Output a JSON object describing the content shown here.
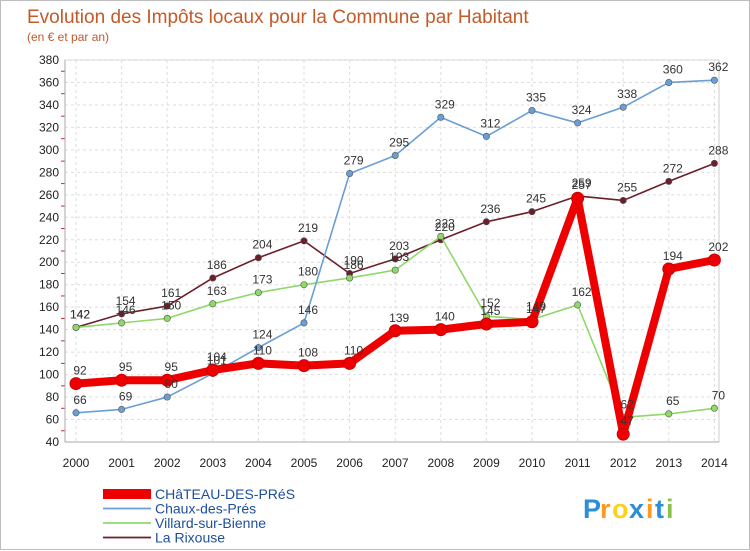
{
  "chart_data": {
    "type": "line",
    "title": "Evolution des Impôts locaux pour la Commune par Habitant",
    "subtitle": "(en € et par an)",
    "xlabel": "",
    "ylabel": "",
    "ylim": [
      40,
      380
    ],
    "yticks": [
      40,
      60,
      80,
      100,
      120,
      140,
      160,
      180,
      200,
      220,
      240,
      260,
      280,
      300,
      320,
      340,
      360,
      380
    ],
    "categories": [
      "2000",
      "2001",
      "2002",
      "2003",
      "2004",
      "2005",
      "2006",
      "2007",
      "2008",
      "2009",
      "2010",
      "2011",
      "2012",
      "2013",
      "2014"
    ],
    "grid": true,
    "legend_position": "bottom-left",
    "series": [
      {
        "name": "La Rixouse",
        "color": "#6b1f2a",
        "values": [
          142,
          154,
          161,
          186,
          204,
          219,
          190,
          203,
          220,
          236,
          245,
          259,
          255,
          272,
          288
        ]
      },
      {
        "name": "Villard-sur-Bienne",
        "color": "#8fd86a",
        "values": [
          142,
          146,
          150,
          163,
          173,
          180,
          186,
          193,
          223,
          152,
          149,
          162,
          62,
          65,
          70
        ]
      },
      {
        "name": "Chaux-des-Prés",
        "color": "#6a9fd5",
        "values": [
          66,
          69,
          80,
          101,
          124,
          146,
          279,
          295,
          329,
          312,
          335,
          324,
          338,
          360,
          362
        ]
      },
      {
        "name": "CHâTEAU-DES-PRéS",
        "color": "#ee0000",
        "values": [
          92,
          95,
          95,
          104,
          110,
          108,
          110,
          139,
          140,
          145,
          147,
          257,
          47,
          194,
          202
        ]
      }
    ]
  },
  "branding": {
    "logo_letters": [
      "P",
      "r",
      "o",
      "x",
      "i",
      "t",
      "i"
    ],
    "logo_colors": [
      "#2b8fd6",
      "#ff9a1a",
      "#ffd21a",
      "#2b8fd6",
      "#ff9a1a",
      "#2b8fd6",
      "#8bc34a"
    ]
  }
}
